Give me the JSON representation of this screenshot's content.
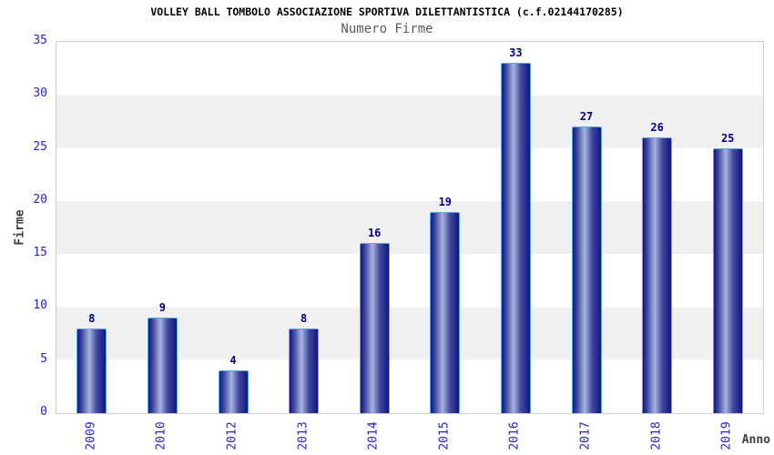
{
  "chart_data": {
    "type": "bar",
    "title": "VOLLEY BALL TOMBOLO ASSOCIAZIONE SPORTIVA DILETTANTISTICA (c.f.02144170285)",
    "subtitle": "Numero Firme",
    "xlabel": "Anno",
    "ylabel": "Firme",
    "categories": [
      "2009",
      "2010",
      "2012",
      "2013",
      "2014",
      "2015",
      "2016",
      "2017",
      "2018",
      "2019"
    ],
    "values": [
      8,
      9,
      4,
      8,
      16,
      19,
      33,
      27,
      26,
      25
    ],
    "ylim": [
      0,
      35
    ],
    "yticks": [
      0,
      5,
      10,
      15,
      20,
      25,
      30,
      35
    ],
    "ytick_step": 5,
    "grid": "alternating-horizontal-bands",
    "legend": "none",
    "bar_style": "3d-cylinder-gradient",
    "x_tick_rotation_degrees": -90
  },
  "colors": {
    "background": "#ffffff",
    "band_gray": "#f0f0f0",
    "plot_border": "#cfcfcf",
    "bar_dark": "#14147d",
    "bar_mid": "#3e4ba0",
    "bar_light": "#aab4e0",
    "bar_border": "#56a7f0",
    "tick_label_blue": "#2525cd",
    "value_label_navy": "#00008b",
    "title_black": "#000000",
    "subtitle_gray": "#595959",
    "axis_label_gray": "#3d3d3d"
  }
}
